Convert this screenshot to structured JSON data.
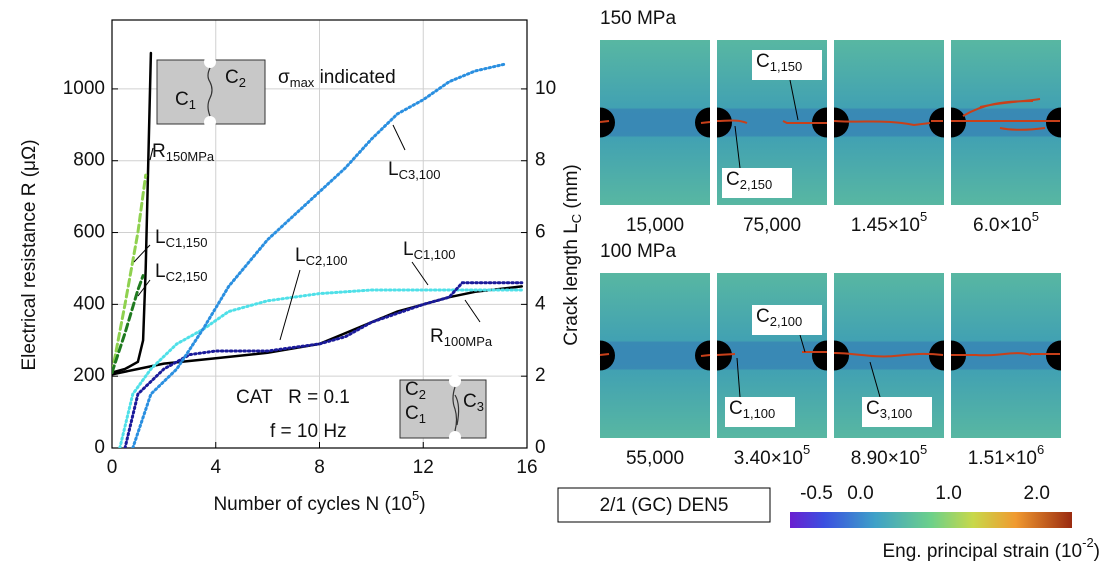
{
  "chart_data": {
    "type": "line",
    "xlabel": [
      "Number of cycles N (10",
      "5",
      ")"
    ],
    "ylabel": "Electrical resistance R (μΩ)",
    "y2label": [
      "Crack length L",
      "C",
      " (mm)"
    ],
    "xlim": [
      0,
      16
    ],
    "xticks": [
      0,
      4,
      8,
      12,
      16
    ],
    "ylim": [
      0,
      1100
    ],
    "yticks": [
      0,
      200,
      400,
      600,
      800,
      1000
    ],
    "y2lim": [
      0,
      11
    ],
    "y2ticks": [
      0,
      2,
      4,
      6,
      8,
      10
    ],
    "grid": true,
    "series": [
      {
        "name": "R",
        "subscript": "150MPa",
        "color": "#000000",
        "line_style": "solid",
        "axis": "y",
        "x": [
          0,
          0.5,
          1.0,
          1.2,
          1.3,
          1.4,
          1.5
        ],
        "values": [
          210,
          220,
          240,
          300,
          500,
          800,
          1100
        ]
      },
      {
        "name": "R",
        "subscript": "100MPa",
        "color": "#000000",
        "line_style": "solid",
        "axis": "y",
        "x": [
          0,
          1,
          2,
          4,
          6,
          8,
          9,
          10,
          11,
          12,
          13,
          14,
          15.8
        ],
        "values": [
          205,
          220,
          235,
          250,
          265,
          290,
          320,
          350,
          380,
          400,
          420,
          435,
          450
        ]
      },
      {
        "name": "L",
        "subscript": "C1,150",
        "color": "#8fd14f",
        "line_style": "dashed",
        "axis": "y2",
        "x": [
          0,
          0.5,
          1.0,
          1.3
        ],
        "values": [
          2.1,
          4,
          6,
          7.6
        ]
      },
      {
        "name": "L",
        "subscript": "C2,150",
        "color": "#1f7a1f",
        "line_style": "dashed",
        "axis": "y2",
        "x": [
          0,
          0.5,
          1.0,
          1.2
        ],
        "values": [
          2.1,
          3.2,
          4.4,
          4.8
        ]
      },
      {
        "name": "L",
        "subscript": "C1,100",
        "color": "#4fe0e8",
        "line_style": "dotted",
        "axis": "y2",
        "x": [
          0.3,
          0.8,
          1.5,
          2.5,
          3.5,
          4.5,
          6,
          8,
          10,
          12,
          14,
          15.8
        ],
        "values": [
          0,
          1.5,
          2.2,
          2.9,
          3.3,
          3.8,
          4.1,
          4.3,
          4.4,
          4.4,
          4.4,
          4.4
        ]
      },
      {
        "name": "L",
        "subscript": "C2,100",
        "color": "#1a1a9a",
        "line_style": "dotted",
        "axis": "y2",
        "x": [
          0.5,
          1,
          2,
          3,
          4,
          6,
          8,
          9,
          10,
          12,
          13,
          13.5,
          15.8
        ],
        "values": [
          0,
          1.5,
          2.2,
          2.6,
          2.7,
          2.7,
          2.9,
          3.1,
          3.5,
          4.0,
          4.2,
          4.6,
          4.6
        ]
      },
      {
        "name": "L",
        "subscript": "C3,100",
        "color": "#2a8fe0",
        "line_style": "dotted",
        "axis": "y2",
        "x": [
          0.8,
          1.5,
          2.5,
          3.5,
          4.5,
          6,
          7.5,
          9,
          10,
          11,
          12,
          13,
          14,
          15.2
        ],
        "values": [
          0,
          1.5,
          2.2,
          3.3,
          4.5,
          5.8,
          6.8,
          7.8,
          8.6,
          9.3,
          9.7,
          10.2,
          10.5,
          10.7
        ]
      }
    ],
    "annotations": {
      "sigma": [
        "σ",
        "max",
        " indicated"
      ],
      "test": "CAT   R = 0.1",
      "frequency": "f = 10 Hz",
      "inset_top": [
        {
          "base": "C",
          "sub": "1"
        },
        {
          "base": "C",
          "sub": "2"
        }
      ],
      "inset_bottom": [
        {
          "base": "C",
          "sub": "2"
        },
        {
          "base": "C",
          "sub": "1"
        },
        {
          "base": "C",
          "sub": "3"
        }
      ]
    }
  },
  "images": {
    "panels": [
      {
        "title": "150 MPa",
        "captions": [
          [
            "15,000"
          ],
          [
            "75,000"
          ],
          [
            "1.45×10",
            "5"
          ],
          [
            "6.0×10",
            "5"
          ]
        ],
        "labels": [
          {
            "base": "C",
            "sub": "1,150"
          },
          {
            "base": "C",
            "sub": "2,150"
          }
        ]
      },
      {
        "title": "100 MPa",
        "captions": [
          [
            "55,000"
          ],
          [
            "3.40×10",
            "5"
          ],
          [
            "8.90×10",
            "5"
          ],
          [
            "1.51×10",
            "6"
          ]
        ],
        "labels": [
          {
            "base": "C",
            "sub": "2,100"
          },
          {
            "base": "C",
            "sub": "1,100"
          },
          {
            "base": "C",
            "sub": "3,100"
          }
        ]
      }
    ],
    "specimen": "2/1 (GC) DEN5",
    "colorbar": {
      "label": [
        "Eng. principal strain (10",
        "-2",
        ")"
      ],
      "lim": [
        -0.8,
        2.4
      ],
      "ticks": [
        -0.5,
        {
          "value": 0,
          "label": "0.0"
        },
        {
          "value": 1,
          "label": "1.0"
        },
        {
          "value": 2,
          "label": "2.0"
        }
      ]
    }
  }
}
